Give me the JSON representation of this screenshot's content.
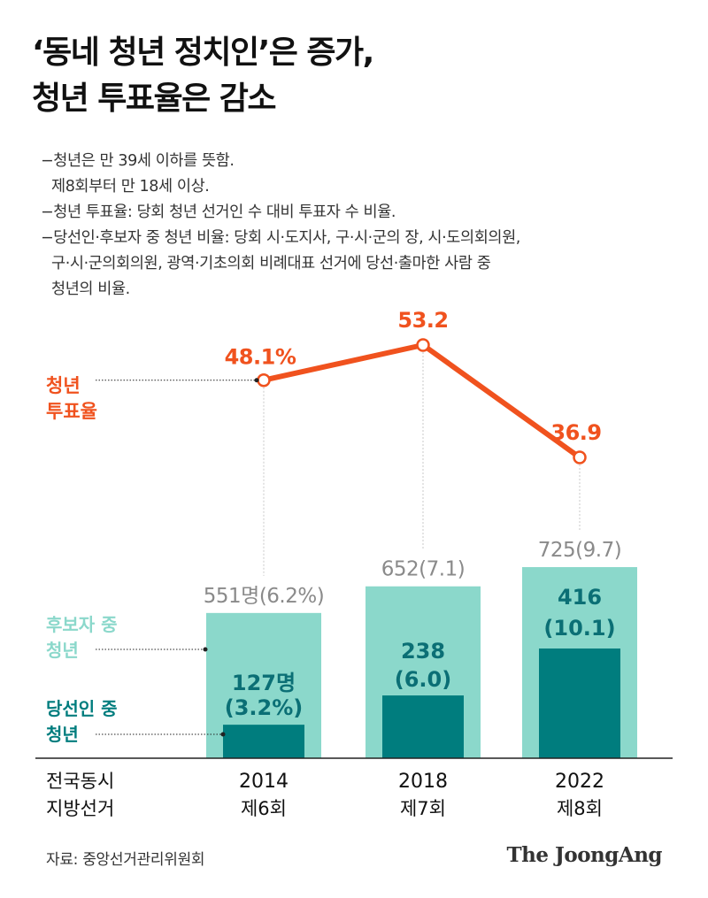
{
  "title": {
    "line1": "‘동네 청년 정치인’은 증가,",
    "line2": "청년 투표율은 감소"
  },
  "notes": {
    "n1": "−청년은 만 39세 이하를 뜻함.",
    "n1b": "제8회부터 만 18세 이상.",
    "n2": "−청년 투표율: 당회 청년 선거인 수 대비 투표자 수 비율.",
    "n3": "−당선인·후보자 중 청년 비율: 당회 시·도지사, 구·시·군의 장, 시·도의회의원,",
    "n3b": "구·시·군의회의원, 광역·기초의회 비례대표 선거에 당선·출마한 사람 중",
    "n3c": "청년의 비율."
  },
  "legend": {
    "turnout_1": "청년",
    "turnout_2": "투표율",
    "candidates_1": "후보자 중",
    "candidates_2": "청년",
    "elected_1": "당선인 중",
    "elected_2": "청년",
    "axis_1": "전국동시",
    "axis_2": "지방선거"
  },
  "colors": {
    "line": "#f0521e",
    "candidates_bar": "#8bd8cb",
    "elected_bar": "#007d7e",
    "candidate_label": "#8a8a8a",
    "elected_label": "#0b6f75"
  },
  "chart_data": {
    "type": "bar+line",
    "categories": [
      "2014",
      "2018",
      "2022"
    ],
    "category_sublabels": [
      "제6회",
      "제7회",
      "제8회"
    ],
    "series": [
      {
        "name": "후보자 중 청년",
        "values": [
          551,
          652,
          725
        ],
        "percent": [
          6.2,
          7.1,
          9.7
        ],
        "labels": [
          "551명(6.2%)",
          "652(7.1)",
          "725(9.7)"
        ]
      },
      {
        "name": "당선인 중 청년",
        "values": [
          127,
          238,
          416
        ],
        "percent": [
          3.2,
          6.0,
          10.1
        ],
        "labels_top": [
          "127명",
          "238",
          "416"
        ],
        "labels_bottom": [
          "(3.2%)",
          "(6.0)",
          "(10.1)"
        ]
      },
      {
        "name": "청년 투표율",
        "values": [
          48.1,
          53.2,
          36.9
        ],
        "labels": [
          "48.1%",
          "53.2",
          "36.9"
        ]
      }
    ]
  },
  "footer": {
    "source": "자료: 중앙선거관리위원회",
    "brand": "The JoongAng"
  }
}
